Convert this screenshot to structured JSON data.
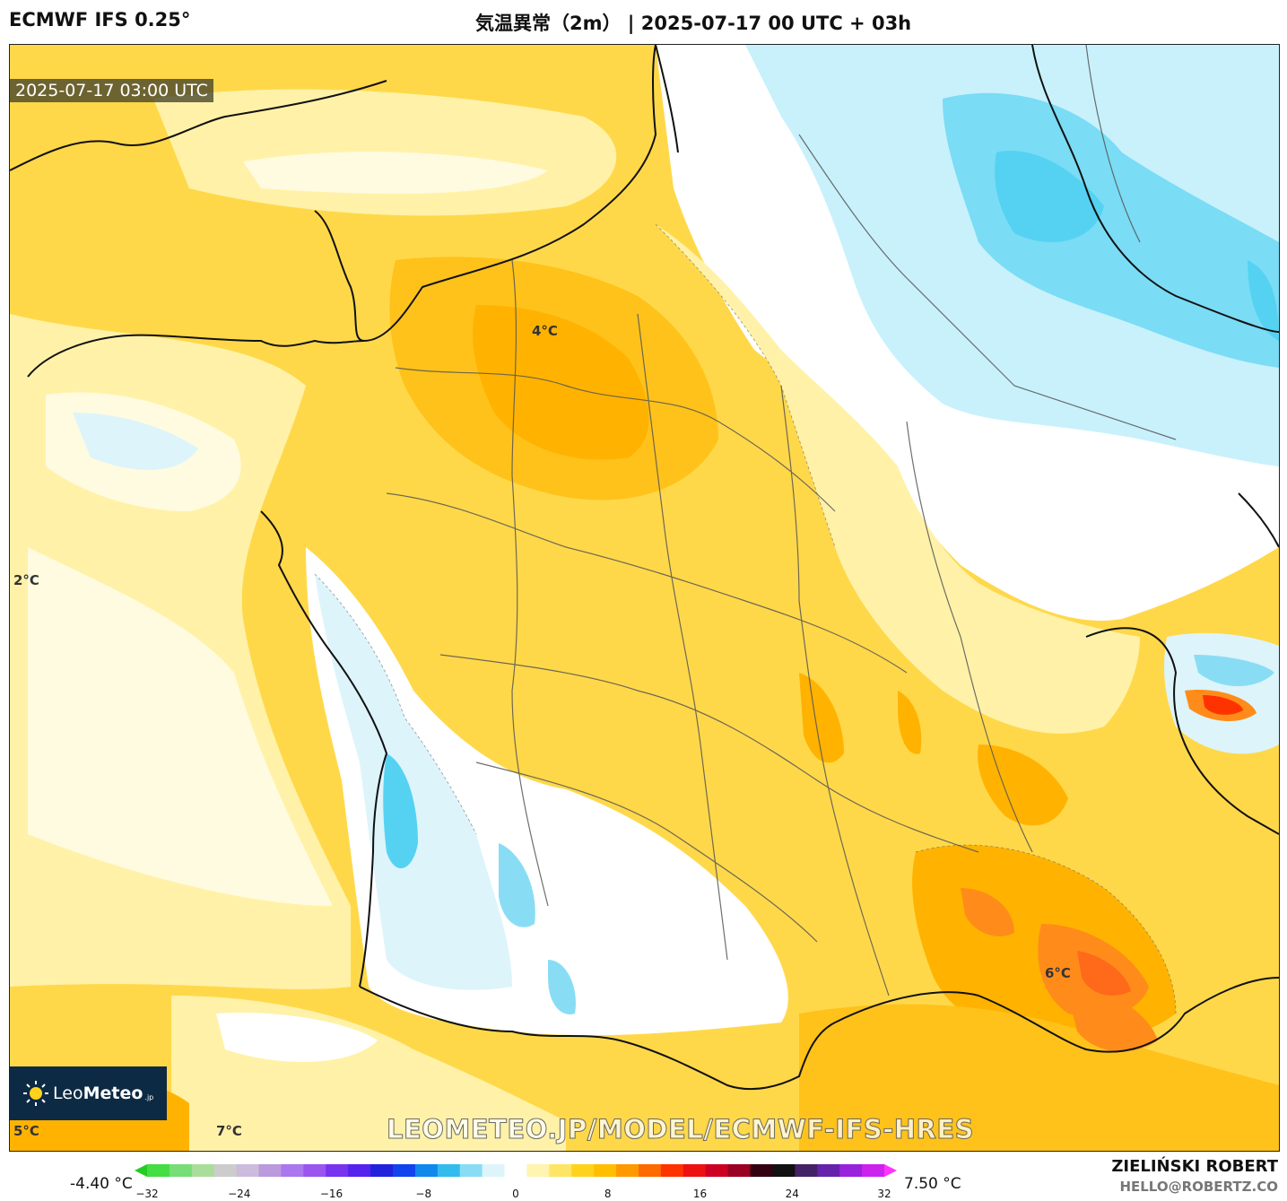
{
  "header": {
    "model": "ECMWF IFS 0.25°",
    "title": "気温異常（2m） | 2025-07-17 00 UTC + 03h"
  },
  "map": {
    "valid_time": "2025-07-17 03:00 UTC",
    "labels": [
      {
        "text": "4°C",
        "name": "map-label-4c"
      },
      {
        "text": "2°C",
        "name": "map-label-2c"
      },
      {
        "text": "6°C",
        "name": "map-label-6c"
      },
      {
        "text": "5°C",
        "name": "map-label-5c"
      },
      {
        "text": "7°C",
        "name": "map-label-7c"
      }
    ],
    "region": "France"
  },
  "logo": {
    "brand_light": "Leo",
    "brand_bold": "Meteo",
    "suffix": ".jp"
  },
  "watermark": "LEOMETEO.JP/MODEL/ECMWF-IFS-HRES",
  "colorbar": {
    "min_label": "-4.40 °C",
    "max_label": "7.50 °C",
    "ticks": [
      "−32",
      "−24",
      "−16",
      "−8",
      "0",
      "8",
      "16",
      "24",
      "32"
    ],
    "range": [
      -32,
      32
    ],
    "colors": [
      "#22cc22",
      "#44dd44",
      "#77dd77",
      "#aadd99",
      "#cccccc",
      "#ccbbdd",
      "#bb99dd",
      "#aa77ee",
      "#9955ee",
      "#7733ee",
      "#5522ee",
      "#2222dd",
      "#1144ee",
      "#1188ee",
      "#33bbee",
      "#88ddf5",
      "#ddf4fb",
      "#ffffff",
      "#fff4b0",
      "#ffe566",
      "#ffd21e",
      "#ffbf00",
      "#ff9900",
      "#ff6a00",
      "#ff3300",
      "#ee1111",
      "#cc0022",
      "#990022",
      "#330011",
      "#111111",
      "#442266",
      "#6622aa",
      "#9922dd",
      "#cc22ee",
      "#ff33ff"
    ]
  },
  "footer": {
    "author": "ZIELIŃSKI ROBERT",
    "email": "HELLO@ROBERTZ.CO"
  },
  "palette": {
    "warm": "#ffd84a",
    "warmer": "#ffb300",
    "hot": "#ff7a1a",
    "cool": "#bfeffc",
    "cold": "#55d2f2",
    "neutral": "#ffffff"
  }
}
